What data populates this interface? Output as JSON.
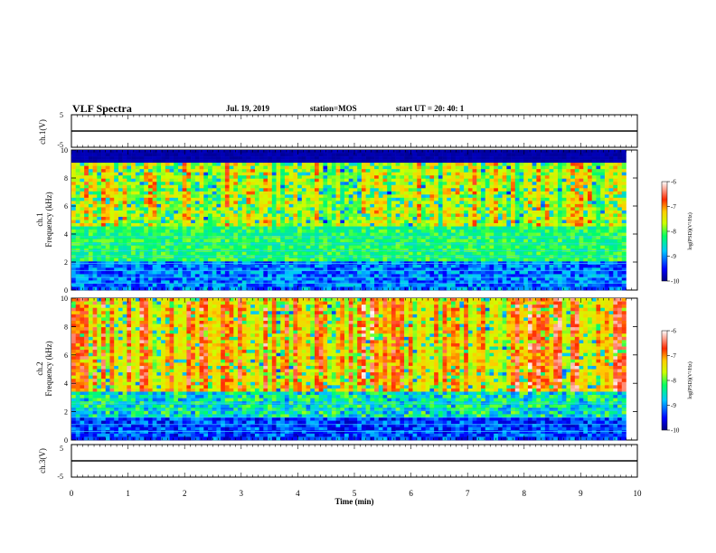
{
  "header": {
    "title": "VLF Spectra",
    "date": "Jul. 19, 2019",
    "station": "station=MOS",
    "start_ut": "start UT =  20: 40: 1"
  },
  "chart_data": [
    {
      "type": "line",
      "name": "ch1-voltage",
      "ylabel": "ch.1(V)",
      "ylim": [
        -5,
        5
      ],
      "yticks": [
        "5",
        "-5"
      ],
      "x": [
        0,
        10
      ],
      "y": [
        0,
        0
      ],
      "xlim": [
        0,
        10
      ]
    },
    {
      "type": "heatmap",
      "name": "ch1-spectrogram",
      "ylabel": "ch.1\nFrequency (kHz)",
      "ylim": [
        0,
        10
      ],
      "yticks": [
        "0",
        "2",
        "4",
        "6",
        "8",
        "10"
      ],
      "xlim": [
        0,
        9.8
      ],
      "colorbar": {
        "label": "log(PSD)(V²/Hz)",
        "range": [
          -10,
          -6
        ],
        "ticks": [
          "-6",
          "-7",
          "-8",
          "-9",
          "-10"
        ]
      }
    },
    {
      "type": "heatmap",
      "name": "ch2-spectrogram",
      "ylabel": "ch.2\nFrequency (kHz)",
      "ylim": [
        0,
        10
      ],
      "yticks": [
        "0",
        "2",
        "4",
        "6",
        "8",
        "10"
      ],
      "xlim": [
        0,
        9.8
      ],
      "colorbar": {
        "label": "log(PSD)(V²/Hz)",
        "range": [
          -10,
          -6
        ],
        "ticks": [
          "-6",
          "-7",
          "-8",
          "-9",
          "-10"
        ]
      }
    },
    {
      "type": "line",
      "name": "ch3-voltage",
      "ylabel": "ch.3(V)",
      "ylim": [
        -5,
        5
      ],
      "yticks": [
        "5",
        "-5"
      ],
      "x": [
        0,
        10
      ],
      "y": [
        0,
        0
      ],
      "xlim": [
        0,
        10
      ]
    }
  ],
  "xaxis": {
    "label": "Time (min)",
    "ticks": [
      "0",
      "1",
      "2",
      "3",
      "4",
      "5",
      "6",
      "7",
      "8",
      "9",
      "10"
    ],
    "range": [
      0,
      10
    ]
  },
  "colors": {
    "bg": "#000000",
    "frame": "#000000"
  }
}
